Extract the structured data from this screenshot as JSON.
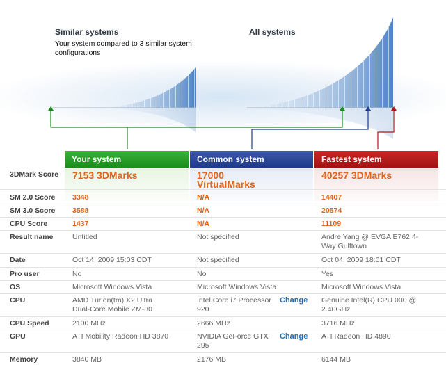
{
  "header": {
    "similar_title": "Similar systems",
    "similar_desc": "Your system compared to 3 similar system configurations",
    "all_title": "All systems"
  },
  "columns": {
    "your": "Your system",
    "common": "Common system",
    "fastest": "Fastest system"
  },
  "colors": {
    "green": "#1a8d1a",
    "blue": "#1e3a8a",
    "red": "#b01818",
    "score": "#e0641b",
    "link": "#2a6fb0"
  },
  "change_label": "Change",
  "rows": [
    {
      "label": "3DMark Score",
      "your": "7153 3DMarks",
      "common": "17000 VirtualMarks",
      "fastest": "40257 3DMarks"
    },
    {
      "label": "SM 2.0 Score",
      "your": "3348",
      "common": "N/A",
      "fastest": "14407"
    },
    {
      "label": "SM 3.0 Score",
      "your": "3588",
      "common": "N/A",
      "fastest": "20574"
    },
    {
      "label": "CPU Score",
      "your": "1437",
      "common": "N/A",
      "fastest": "11109"
    },
    {
      "label": "Result name",
      "your": "Untitled",
      "common": "Not specified",
      "fastest": "Andre Yang @ EVGA E762 4-Way Gulftown"
    },
    {
      "label": "Date",
      "your": "Oct 14, 2009 15:03 CDT",
      "common": "Not specified",
      "fastest": "Oct 04, 2009 18:01 CDT"
    },
    {
      "label": "Pro user",
      "your": "No",
      "common": "No",
      "fastest": "Yes"
    },
    {
      "label": "OS",
      "your": "Microsoft Windows Vista",
      "common": "Microsoft Windows Vista",
      "fastest": "Microsoft Windows Vista"
    },
    {
      "label": "CPU",
      "your": "AMD Turion(tm) X2 Ultra Dual-Core Mobile ZM-80",
      "common": "Intel Core i7 Processor 920",
      "fastest": "Genuine Intel(R) CPU 000 @ 2.40GHz"
    },
    {
      "label": "CPU Speed",
      "your": "2100 MHz",
      "common": "2666 MHz",
      "fastest": "3716 MHz"
    },
    {
      "label": "GPU",
      "your": "ATI Mobility Radeon HD 3870",
      "common": "NVIDIA GeForce GTX 295",
      "fastest": "ATI Radeon HD 4890"
    },
    {
      "label": "Memory",
      "your": "3840 MB",
      "common": "2176 MB",
      "fastest": "6144 MB"
    }
  ]
}
